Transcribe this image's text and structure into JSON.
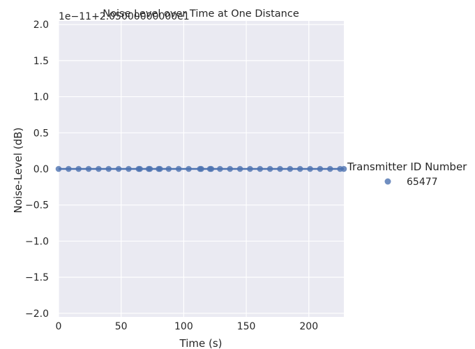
{
  "chart_data": {
    "type": "scatter",
    "title": "Noise Level over Time at One Distance",
    "xlabel": "Time (s)",
    "ylabel": "Noise-Level (dB)",
    "y_offset_text": "1e−11+2.05000000000e1",
    "xlim": [
      0,
      228
    ],
    "ylim": [
      -2.05,
      2.05
    ],
    "x_ticks": [
      0,
      50,
      100,
      150,
      200
    ],
    "x_tick_labels": [
      "0",
      "50",
      "100",
      "150",
      "200"
    ],
    "y_ticks": [
      2.0,
      1.5,
      1.0,
      0.5,
      0.0,
      -0.5,
      -1.0,
      -1.5,
      -2.0
    ],
    "y_tick_labels": [
      "2.0",
      "1.5",
      "1.0",
      "0.5",
      "0.0",
      "−0.5",
      "−1.0",
      "−1.5",
      "−2.0"
    ],
    "grid": true,
    "regression_line": true,
    "legend": {
      "title": "Transmitter ID Number",
      "placement": "right",
      "entries": [
        "65477"
      ]
    },
    "series": [
      {
        "name": "65477",
        "color": "#4c72b0",
        "x": [
          0,
          8,
          16,
          24,
          32,
          40,
          48,
          56,
          64,
          65,
          72,
          73,
          80,
          81,
          88,
          96,
          104,
          113,
          114,
          121,
          122,
          129,
          137,
          145,
          153,
          161,
          169,
          177,
          185,
          193,
          201,
          209,
          217,
          225,
          228
        ],
        "y": [
          0,
          0,
          0,
          0,
          0,
          0,
          0,
          0,
          0,
          0,
          0,
          0,
          0,
          0,
          0,
          0,
          0,
          0,
          0,
          0,
          0,
          0,
          0,
          0,
          0,
          0,
          0,
          0,
          0,
          0,
          0,
          0,
          0,
          0,
          0
        ]
      }
    ]
  }
}
